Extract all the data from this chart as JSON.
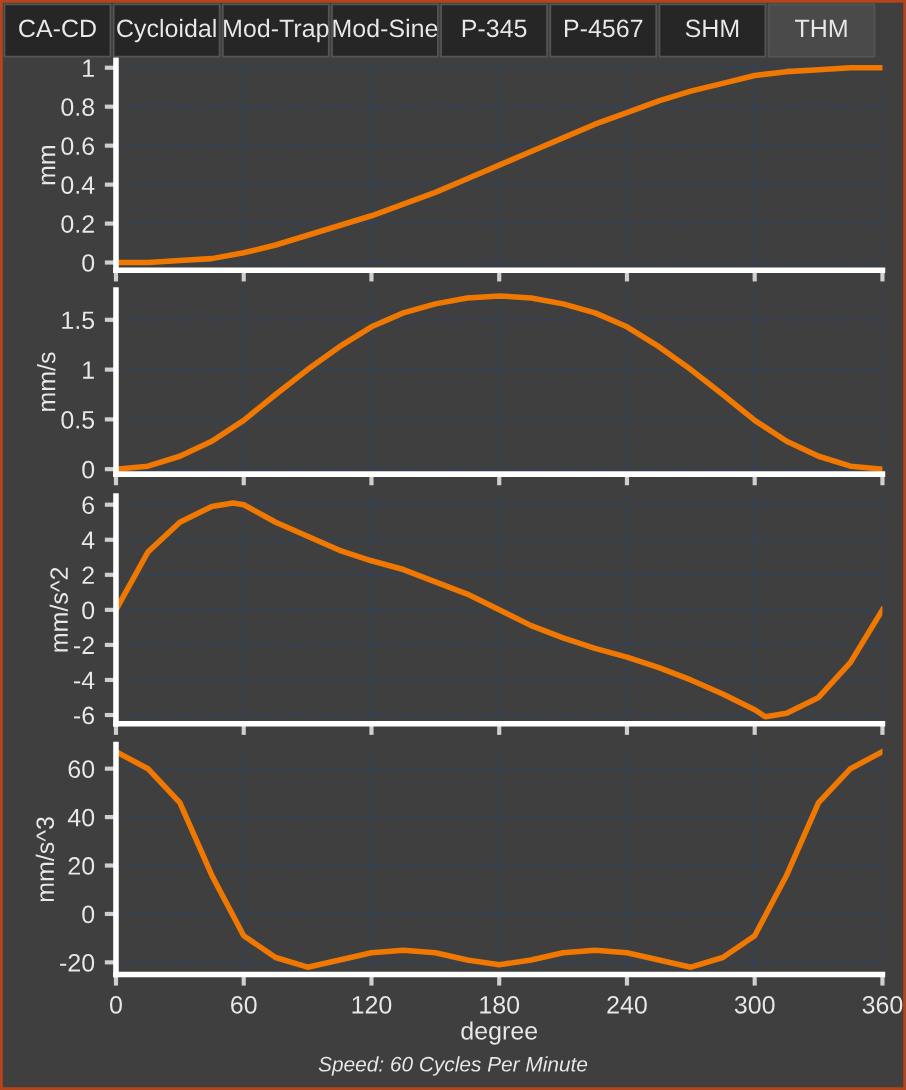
{
  "chart_data": [
    {
      "type": "line",
      "ylabel": "mm",
      "annotations": [
        "CA-CD",
        "Cycloidal",
        "Mod-Trap",
        "Mod-Sine",
        "P-345",
        "P-4567",
        "SHM",
        "THM"
      ],
      "x": [
        0,
        15,
        30,
        45,
        60,
        75,
        90,
        105,
        120,
        135,
        150,
        165,
        180,
        195,
        210,
        225,
        240,
        255,
        270,
        285,
        300,
        315,
        330,
        345,
        360
      ],
      "series": [
        {
          "color": "#f07800",
          "values": [
            0,
            0,
            0.01,
            0.02,
            0.05,
            0.09,
            0.14,
            0.19,
            0.24,
            0.3,
            0.36,
            0.43,
            0.5,
            0.57,
            0.64,
            0.71,
            0.77,
            0.83,
            0.88,
            0.92,
            0.96,
            0.98,
            0.99,
            1.0,
            1.0
          ]
        }
      ],
      "xlim": [
        0,
        360
      ],
      "xticks": [
        0,
        60,
        120,
        180,
        240,
        300,
        360
      ],
      "ylim": [
        -0.04,
        1.04
      ],
      "yticks": [
        0,
        0.2,
        0.4,
        0.6,
        0.8,
        1
      ],
      "grid": true,
      "tick_labels": "y"
    },
    {
      "type": "line",
      "ylabel": "mm/s",
      "x": [
        0,
        15,
        30,
        45,
        60,
        75,
        90,
        105,
        120,
        135,
        150,
        165,
        180,
        195,
        210,
        225,
        240,
        255,
        270,
        285,
        300,
        315,
        330,
        345,
        360
      ],
      "series": [
        {
          "color": "#f07800",
          "values": [
            0,
            0.03,
            0.13,
            0.28,
            0.49,
            0.75,
            1.0,
            1.23,
            1.43,
            1.57,
            1.66,
            1.72,
            1.74,
            1.72,
            1.66,
            1.57,
            1.43,
            1.23,
            1.0,
            0.75,
            0.49,
            0.28,
            0.13,
            0.03,
            0
          ]
        }
      ],
      "xlim": [
        0,
        360
      ],
      "xticks": [
        0,
        60,
        120,
        180,
        240,
        300,
        360
      ],
      "ylim": [
        -0.05,
        1.8
      ],
      "yticks": [
        0,
        0.5,
        1,
        1.5
      ],
      "grid": true,
      "tick_labels": "y"
    },
    {
      "type": "line",
      "ylabel": "mm/s^2",
      "x": [
        0,
        15,
        30,
        45,
        55,
        60,
        75,
        90,
        105,
        120,
        135,
        150,
        165,
        180,
        195,
        210,
        225,
        240,
        255,
        270,
        285,
        300,
        305,
        315,
        330,
        345,
        360
      ],
      "series": [
        {
          "color": "#f07800",
          "values": [
            0,
            3.3,
            5.0,
            5.9,
            6.1,
            6.0,
            5.0,
            4.2,
            3.4,
            2.8,
            2.3,
            1.6,
            0.9,
            0,
            -0.9,
            -1.6,
            -2.2,
            -2.7,
            -3.3,
            -4.0,
            -4.8,
            -5.7,
            -6.1,
            -5.9,
            -5.0,
            -3.0,
            0
          ]
        }
      ],
      "xlim": [
        0,
        360
      ],
      "xticks": [
        0,
        60,
        120,
        180,
        240,
        300,
        360
      ],
      "ylim": [
        -6.5,
        6.5
      ],
      "yticks": [
        -6,
        -4,
        -2,
        0,
        2,
        4,
        6
      ],
      "grid": true,
      "tick_labels": "y"
    },
    {
      "type": "line",
      "ylabel": "mm/s^3",
      "xlabel": "degree",
      "annotations": [
        "Speed: 60 Cycles Per Minute"
      ],
      "x": [
        0,
        15,
        30,
        45,
        60,
        75,
        90,
        105,
        120,
        135,
        150,
        165,
        180,
        195,
        210,
        225,
        240,
        255,
        270,
        285,
        300,
        315,
        330,
        345,
        360
      ],
      "series": [
        {
          "color": "#f07800",
          "values": [
            67,
            60,
            46,
            16,
            -9,
            -18,
            -22,
            -19,
            -16,
            -15,
            -16,
            -19,
            -21,
            -19,
            -16,
            -15,
            -16,
            -19,
            -22,
            -18,
            -9,
            16,
            46,
            60,
            67
          ]
        }
      ],
      "xlim": [
        0,
        360
      ],
      "xticks": [
        0,
        60,
        120,
        180,
        240,
        300,
        360
      ],
      "ylim": [
        -25,
        70
      ],
      "yticks": [
        -20,
        0,
        20,
        40,
        60
      ],
      "grid": true
    }
  ]
}
